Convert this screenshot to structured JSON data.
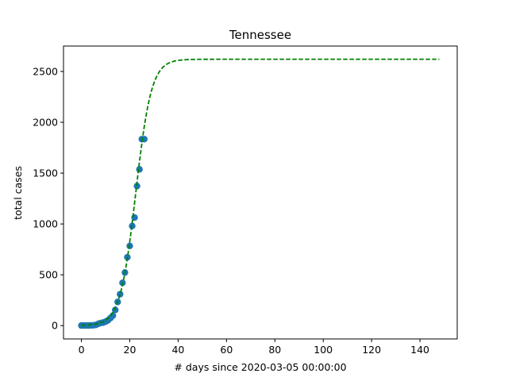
{
  "chart_data": {
    "type": "scatter",
    "title": "Tennessee",
    "xlabel": "# days since 2020-03-05 00:00:00",
    "ylabel": "total cases",
    "xlim": [
      -7.4,
      155.4
    ],
    "ylim": [
      -131,
      2750
    ],
    "xticks": [
      0,
      20,
      40,
      60,
      80,
      100,
      120,
      140
    ],
    "yticks": [
      0,
      500,
      1000,
      1500,
      2000,
      2500
    ],
    "grid": false,
    "series": [
      {
        "kind": "scatter",
        "color": "#1f77b4",
        "x": [
          0,
          1,
          2,
          3,
          4,
          5,
          6,
          7,
          8,
          9,
          10,
          11,
          12,
          13,
          14,
          15,
          16,
          17,
          18,
          19,
          20,
          21,
          22,
          23,
          24,
          25,
          26
        ],
        "y": [
          1,
          1,
          1,
          1,
          2,
          3,
          7,
          18,
          26,
          30,
          39,
          52,
          74,
          98,
          154,
          233,
          309,
          421,
          522,
          672,
          784,
          980,
          1063,
          1373,
          1537,
          1834,
          1834
        ]
      },
      {
        "kind": "line",
        "style": "dashed",
        "color": "#008000",
        "curve": "logistic",
        "x_start": 0,
        "x_end": 148,
        "K": 2620,
        "r": 0.31,
        "x0": 22.5
      }
    ]
  }
}
